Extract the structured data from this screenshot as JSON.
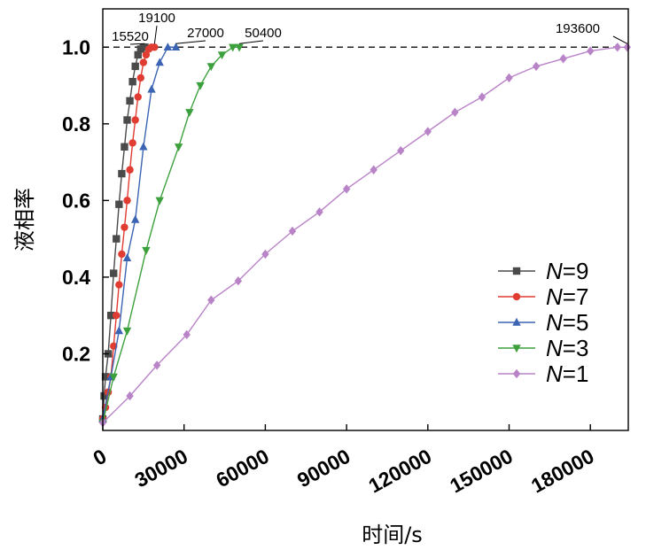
{
  "chart_data": {
    "type": "line",
    "title": "",
    "xlabel": "时间/s",
    "ylabel": "液相率",
    "xlim": [
      0,
      194000
    ],
    "ylim": [
      0,
      1.1
    ],
    "x_ticks": [
      "0",
      "30000",
      "60000",
      "90000",
      "120000",
      "150000",
      "180000"
    ],
    "x_tick_values": [
      0,
      30000,
      60000,
      90000,
      120000,
      150000,
      180000
    ],
    "y_ticks": [
      "0.2",
      "0.4",
      "0.6",
      "0.8",
      "1.0"
    ],
    "y_tick_values": [
      0.2,
      0.4,
      0.6,
      0.8,
      1.0
    ],
    "reference_line": {
      "y": 1.0,
      "style": "dashed"
    },
    "legend_position": "right",
    "series": [
      {
        "name": "N=9",
        "legend_prefix": "N",
        "legend_suffix": "=9",
        "color": "#4a4a4a",
        "marker": "square",
        "x": [
          0,
          500,
          1000,
          2000,
          3000,
          4000,
          5000,
          6000,
          7000,
          8000,
          9000,
          10000,
          11000,
          12000,
          13000,
          14000,
          15000,
          15520
        ],
        "y": [
          0.03,
          0.09,
          0.14,
          0.2,
          0.3,
          0.41,
          0.5,
          0.59,
          0.67,
          0.74,
          0.81,
          0.86,
          0.91,
          0.95,
          0.98,
          0.995,
          1.0,
          1.0
        ]
      },
      {
        "name": "N=7",
        "legend_prefix": "N",
        "legend_suffix": "=7",
        "color": "#e03c32",
        "marker": "circle",
        "x": [
          0,
          1000,
          2000,
          3000,
          4000,
          5000,
          6000,
          7000,
          8000,
          9000,
          10000,
          11000,
          12000,
          13000,
          14000,
          15000,
          16000,
          17000,
          18000,
          19100
        ],
        "y": [
          0.03,
          0.06,
          0.1,
          0.14,
          0.22,
          0.3,
          0.38,
          0.46,
          0.53,
          0.6,
          0.68,
          0.75,
          0.81,
          0.87,
          0.92,
          0.96,
          0.98,
          0.995,
          1.0,
          1.0
        ]
      },
      {
        "name": "N=5",
        "legend_prefix": "N",
        "legend_suffix": "=5",
        "color": "#3c64b4",
        "marker": "triangle",
        "x": [
          0,
          3000,
          6000,
          9000,
          12000,
          15000,
          18000,
          21000,
          24000,
          27000
        ],
        "y": [
          0.03,
          0.14,
          0.26,
          0.45,
          0.55,
          0.74,
          0.89,
          0.96,
          1.0,
          1.0
        ]
      },
      {
        "name": "N=3",
        "legend_prefix": "N",
        "legend_suffix": "=3",
        "color": "#3ca03c",
        "marker": "triangle-down",
        "x": [
          0,
          4000,
          9000,
          16000,
          21000,
          28000,
          32000,
          36000,
          40000,
          44000,
          48000,
          50400
        ],
        "y": [
          0.02,
          0.14,
          0.26,
          0.47,
          0.6,
          0.74,
          0.83,
          0.9,
          0.95,
          0.98,
          1.0,
          1.0
        ]
      },
      {
        "name": "N=1",
        "legend_prefix": "N",
        "legend_suffix": "=1",
        "color": "#b983c8",
        "marker": "diamond",
        "x": [
          0,
          10000,
          20000,
          31000,
          40000,
          50000,
          60000,
          70000,
          80000,
          90000,
          100000,
          110000,
          120000,
          130000,
          140000,
          150000,
          160000,
          170000,
          180000,
          190000,
          193600
        ],
        "y": [
          0.02,
          0.09,
          0.17,
          0.25,
          0.34,
          0.39,
          0.46,
          0.52,
          0.57,
          0.63,
          0.68,
          0.73,
          0.78,
          0.83,
          0.87,
          0.92,
          0.95,
          0.97,
          0.99,
          1.0,
          1.0
        ]
      }
    ],
    "annotations": [
      {
        "text": "15520",
        "x": 15520,
        "y": 1.0
      },
      {
        "text": "19100",
        "x": 19100,
        "y": 1.0
      },
      {
        "text": "27000",
        "x": 27000,
        "y": 1.0
      },
      {
        "text": "50400",
        "x": 50400,
        "y": 1.0
      },
      {
        "text": "193600",
        "x": 193600,
        "y": 1.0
      }
    ]
  }
}
